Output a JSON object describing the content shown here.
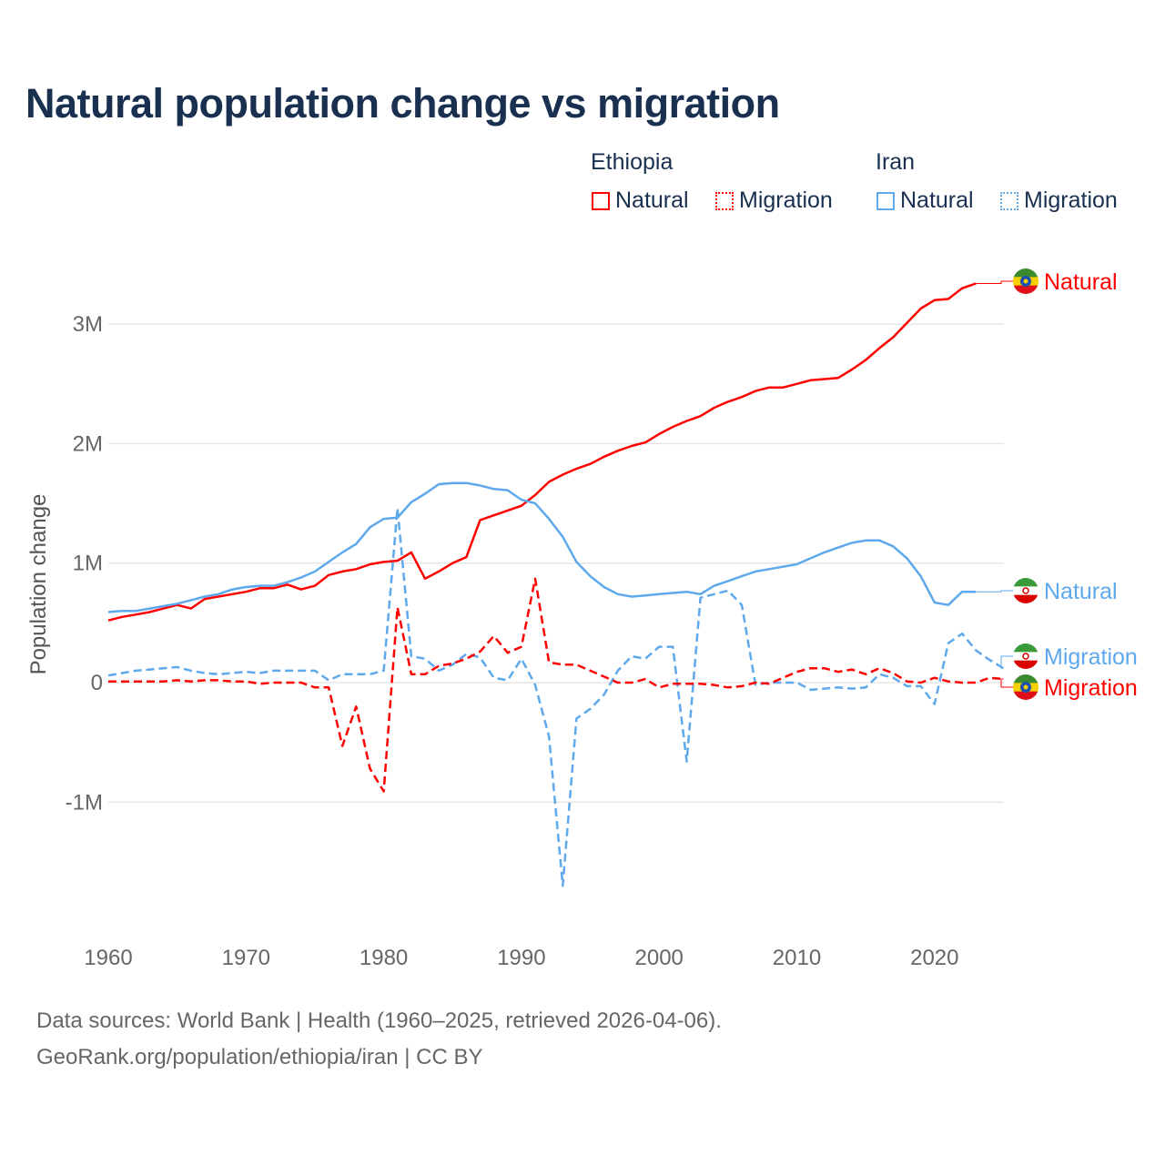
{
  "title": "Natural population change vs migration",
  "legend": {
    "groups": [
      {
        "name": "Ethiopia",
        "items": [
          "Natural",
          "Migration"
        ],
        "color": "#ff0000"
      },
      {
        "name": "Iran",
        "items": [
          "Natural",
          "Migration"
        ],
        "color": "#5ea8ec"
      }
    ]
  },
  "footer": {
    "line1": "Data sources: World Bank | Health (1960–2025, retrieved 2026-04-06).",
    "line2": "GeoRank.org/population/ethiopia/iran | CC BY"
  },
  "chart_data": {
    "type": "line",
    "title": "Natural population change vs migration",
    "xlabel": "",
    "ylabel": "Population change",
    "xlim": [
      1960,
      2025
    ],
    "ylim": [
      -1.9,
      3.6
    ],
    "y_unit": "millions",
    "yticks": [
      {
        "v": 3,
        "label": "3M"
      },
      {
        "v": 2,
        "label": "2M"
      },
      {
        "v": 1,
        "label": "1M"
      },
      {
        "v": 0,
        "label": "0"
      },
      {
        "v": -1,
        "label": "-1M"
      }
    ],
    "xticks": [
      1960,
      1970,
      1980,
      1990,
      2000,
      2010,
      2020
    ],
    "grid": true,
    "series": [
      {
        "name": "Ethiopia Natural",
        "end_label": "Natural",
        "country": "Ethiopia",
        "color": "#ff0000",
        "dashed": false,
        "start": 1960,
        "values": [
          0.52,
          0.55,
          0.57,
          0.59,
          0.62,
          0.65,
          0.62,
          0.7,
          0.72,
          0.74,
          0.76,
          0.79,
          0.79,
          0.82,
          0.78,
          0.81,
          0.9,
          0.93,
          0.95,
          0.99,
          1.01,
          1.02,
          1.09,
          0.87,
          0.93,
          1.0,
          1.05,
          1.36,
          1.4,
          1.44,
          1.48,
          1.57,
          1.68,
          1.74,
          1.79,
          1.83,
          1.89,
          1.94,
          1.98,
          2.01,
          2.08,
          2.14,
          2.19,
          2.23,
          2.3,
          2.35,
          2.39,
          2.44,
          2.47,
          2.47,
          2.5,
          2.53,
          2.54,
          2.55,
          2.62,
          2.7,
          2.8,
          2.89,
          3.01,
          3.13,
          3.2,
          3.21,
          3.3,
          3.34
        ]
      },
      {
        "name": "Iran Natural",
        "end_label": "Natural",
        "country": "Iran",
        "color": "#5ea8ec",
        "dashed": false,
        "start": 1960,
        "values": [
          0.59,
          0.6,
          0.6,
          0.62,
          0.64,
          0.66,
          0.69,
          0.72,
          0.74,
          0.78,
          0.8,
          0.81,
          0.81,
          0.84,
          0.88,
          0.93,
          1.01,
          1.09,
          1.16,
          1.3,
          1.37,
          1.38,
          1.51,
          1.58,
          1.66,
          1.67,
          1.67,
          1.65,
          1.62,
          1.61,
          1.53,
          1.5,
          1.37,
          1.22,
          1.01,
          0.89,
          0.8,
          0.74,
          0.72,
          0.73,
          0.74,
          0.75,
          0.76,
          0.74,
          0.81,
          0.85,
          0.89,
          0.93,
          0.95,
          0.97,
          0.99,
          1.04,
          1.09,
          1.13,
          1.17,
          1.19,
          1.19,
          1.14,
          1.04,
          0.89,
          0.67,
          0.65,
          0.76,
          0.76
        ]
      },
      {
        "name": "Iran Migration",
        "end_label": "Migration",
        "country": "Iran",
        "color": "#5ea8ec",
        "dashed": true,
        "start": 1960,
        "values": [
          0.06,
          0.08,
          0.1,
          0.11,
          0.12,
          0.13,
          0.1,
          0.08,
          0.07,
          0.08,
          0.09,
          0.08,
          0.1,
          0.1,
          0.1,
          0.1,
          0.02,
          0.07,
          0.07,
          0.07,
          0.1,
          1.46,
          0.22,
          0.2,
          0.1,
          0.15,
          0.24,
          0.21,
          0.04,
          0.02,
          0.2,
          -0.02,
          -0.45,
          -1.7,
          -0.3,
          -0.22,
          -0.1,
          0.1,
          0.22,
          0.2,
          0.3,
          0.3,
          -0.66,
          0.71,
          0.74,
          0.77,
          0.65,
          -0.02,
          0.0,
          0.0,
          0.0,
          -0.06,
          -0.05,
          -0.04,
          -0.05,
          -0.04,
          0.07,
          0.04,
          -0.03,
          -0.03,
          -0.18,
          0.33,
          0.41,
          0.27,
          0.19,
          0.12
        ]
      },
      {
        "name": "Ethiopia Migration",
        "end_label": "Migration",
        "country": "Ethiopia",
        "color": "#ff0000",
        "dashed": true,
        "start": 1960,
        "values": [
          0.01,
          0.01,
          0.01,
          0.01,
          0.01,
          0.02,
          0.01,
          0.02,
          0.02,
          0.01,
          0.01,
          -0.01,
          0.0,
          0.0,
          0.0,
          -0.04,
          -0.04,
          -0.53,
          -0.2,
          -0.72,
          -0.91,
          0.63,
          0.07,
          0.07,
          0.14,
          0.16,
          0.2,
          0.26,
          0.39,
          0.25,
          0.3,
          0.87,
          0.17,
          0.15,
          0.15,
          0.1,
          0.05,
          0.0,
          0.0,
          0.03,
          -0.04,
          -0.01,
          -0.01,
          -0.01,
          -0.02,
          -0.04,
          -0.03,
          0.0,
          -0.01,
          0.04,
          0.09,
          0.12,
          0.12,
          0.09,
          0.11,
          0.07,
          0.12,
          0.08,
          0.01,
          0.0,
          0.04,
          0.01,
          0.0,
          0.0,
          0.04,
          0.03
        ]
      }
    ]
  }
}
